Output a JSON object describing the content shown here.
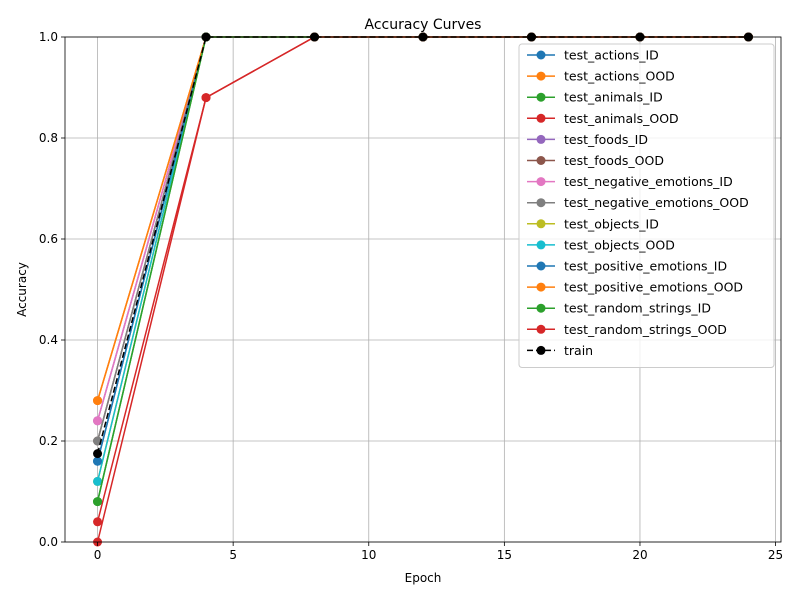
{
  "chart_data": {
    "type": "line",
    "title": "Accuracy Curves",
    "xlabel": "Epoch",
    "ylabel": "Accuracy",
    "xlim": [
      -1.2,
      25.2
    ],
    "ylim": [
      0,
      1.0
    ],
    "xticks": [
      0,
      5,
      10,
      15,
      20,
      25
    ],
    "yticks": [
      0.0,
      0.2,
      0.4,
      0.6,
      0.8,
      1.0
    ],
    "xtick_labels": [
      "0",
      "5",
      "10",
      "15",
      "20",
      "25"
    ],
    "ytick_labels": [
      "0.0",
      "0.2",
      "0.4",
      "0.6",
      "0.8",
      "1.0"
    ],
    "grid": true,
    "legend_position": "top-right",
    "x": [
      0,
      4,
      8,
      12,
      16,
      20,
      24
    ],
    "series": [
      {
        "name": "test_actions_ID",
        "color": "#1f77b4",
        "dashed": false,
        "values": [
          0.16,
          1.0,
          1.0,
          1.0,
          1.0,
          1.0,
          1.0
        ]
      },
      {
        "name": "test_actions_OOD",
        "color": "#ff7f0e",
        "dashed": false,
        "values": [
          0.28,
          1.0,
          1.0,
          1.0,
          1.0,
          1.0,
          1.0
        ]
      },
      {
        "name": "test_animals_ID",
        "color": "#2ca02c",
        "dashed": false,
        "values": [
          0.08,
          1.0,
          1.0,
          1.0,
          1.0,
          1.0,
          1.0
        ]
      },
      {
        "name": "test_animals_OOD",
        "color": "#d62728",
        "dashed": false,
        "values": [
          0.04,
          0.88,
          1.0,
          1.0,
          1.0,
          1.0,
          1.0
        ]
      },
      {
        "name": "test_foods_ID",
        "color": "#9467bd",
        "dashed": false,
        "values": [
          0.24,
          1.0,
          1.0,
          1.0,
          1.0,
          1.0,
          1.0
        ]
      },
      {
        "name": "test_foods_OOD",
        "color": "#8c564b",
        "dashed": false,
        "values": [
          0.2,
          1.0,
          1.0,
          1.0,
          1.0,
          1.0,
          1.0
        ]
      },
      {
        "name": "test_negative_emotions_ID",
        "color": "#e377c2",
        "dashed": false,
        "values": [
          0.24,
          1.0,
          1.0,
          1.0,
          1.0,
          1.0,
          1.0
        ]
      },
      {
        "name": "test_negative_emotions_OOD",
        "color": "#7f7f7f",
        "dashed": false,
        "values": [
          0.2,
          1.0,
          1.0,
          1.0,
          1.0,
          1.0,
          1.0
        ]
      },
      {
        "name": "test_objects_ID",
        "color": "#bcbd22",
        "dashed": false,
        "values": [
          0.12,
          1.0,
          1.0,
          1.0,
          1.0,
          1.0,
          1.0
        ]
      },
      {
        "name": "test_objects_OOD",
        "color": "#17becf",
        "dashed": false,
        "values": [
          0.12,
          1.0,
          1.0,
          1.0,
          1.0,
          1.0,
          1.0
        ]
      },
      {
        "name": "test_positive_emotions_ID",
        "color": "#1f77b4",
        "dashed": false,
        "values": [
          0.16,
          1.0,
          1.0,
          1.0,
          1.0,
          1.0,
          1.0
        ]
      },
      {
        "name": "test_positive_emotions_OOD",
        "color": "#ff7f0e",
        "dashed": false,
        "values": [
          0.28,
          1.0,
          1.0,
          1.0,
          1.0,
          1.0,
          1.0
        ]
      },
      {
        "name": "test_random_strings_ID",
        "color": "#2ca02c",
        "dashed": false,
        "values": [
          0.08,
          1.0,
          1.0,
          1.0,
          1.0,
          1.0,
          1.0
        ]
      },
      {
        "name": "test_random_strings_OOD",
        "color": "#d62728",
        "dashed": false,
        "values": [
          0.0,
          0.88,
          1.0,
          1.0,
          1.0,
          1.0,
          1.0
        ]
      },
      {
        "name": "train",
        "color": "#000000",
        "dashed": true,
        "values": [
          0.175,
          1.0,
          1.0,
          1.0,
          1.0,
          1.0,
          1.0
        ]
      }
    ]
  }
}
